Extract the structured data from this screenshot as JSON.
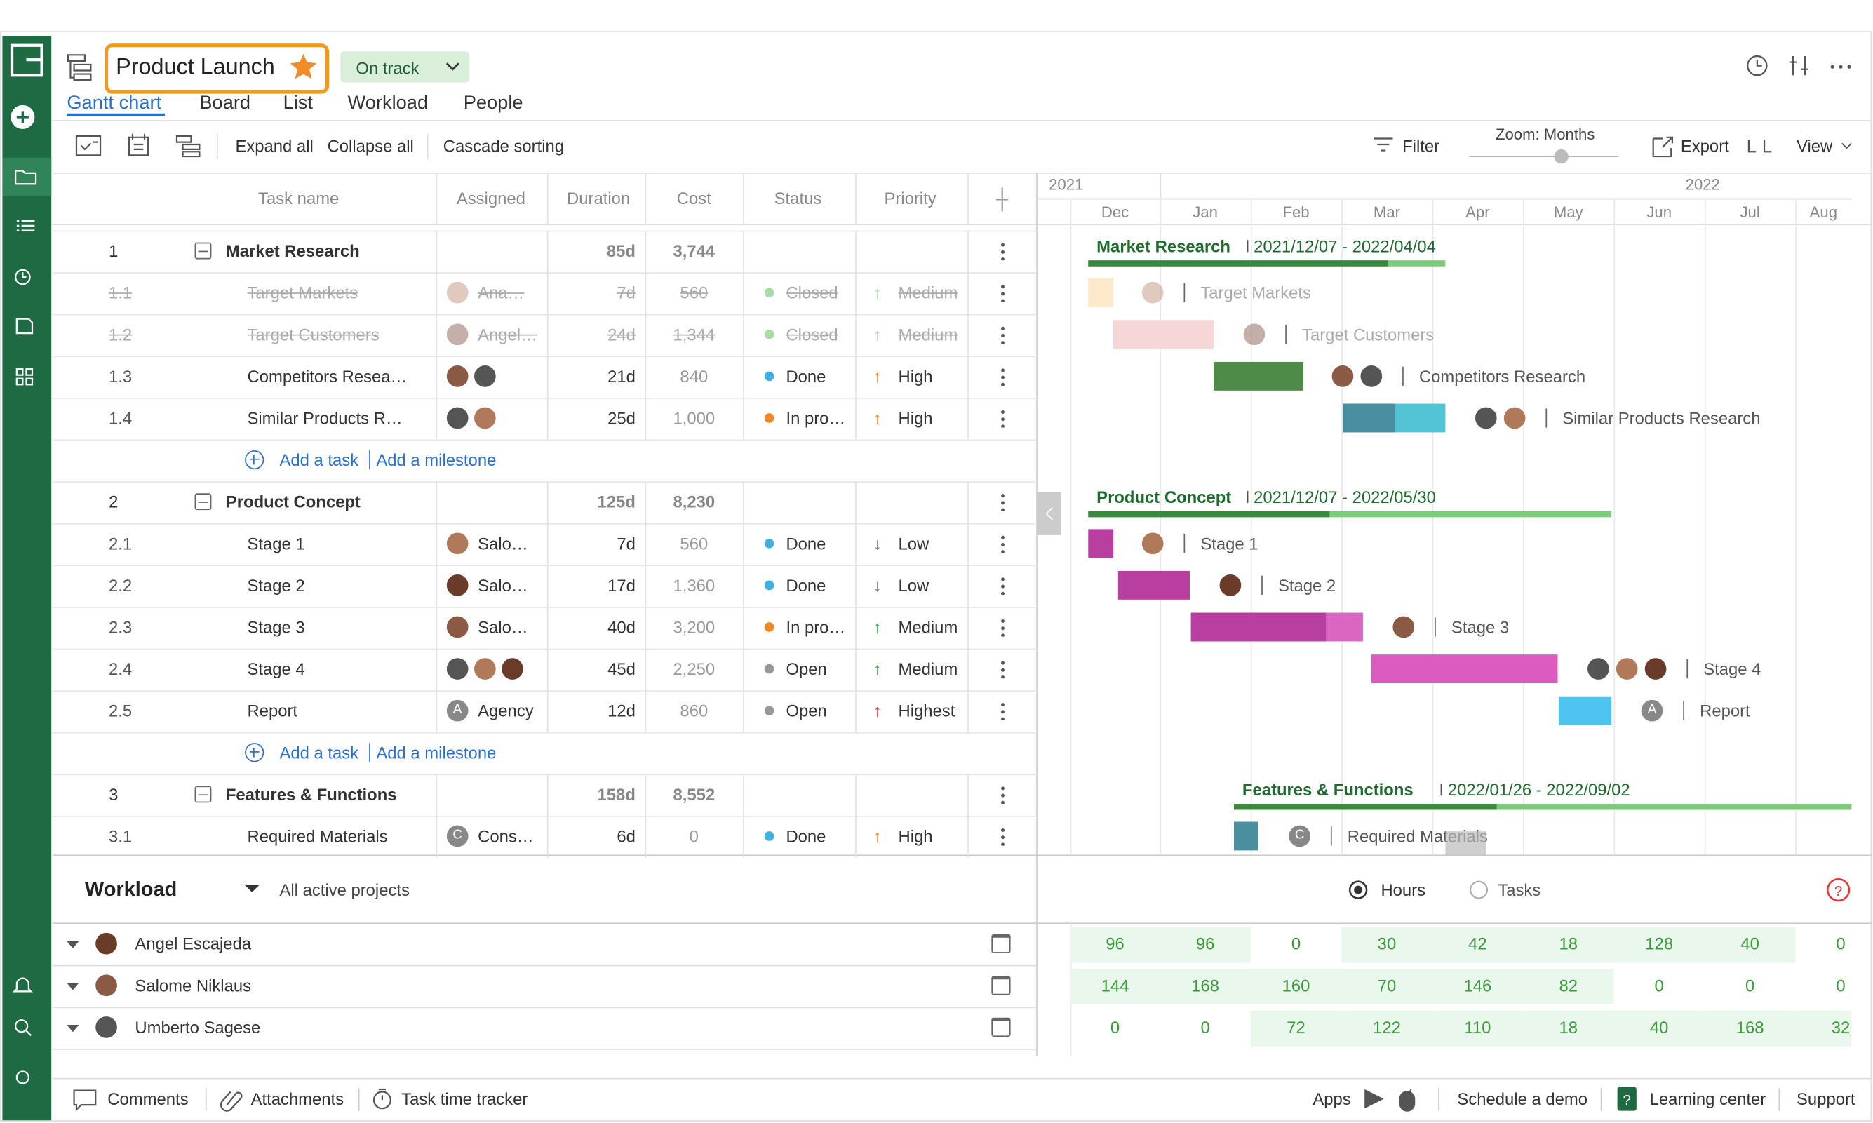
{
  "header": {
    "title": "Product Launch",
    "status": "On track",
    "tabs": [
      "Gantt chart",
      "Board",
      "List",
      "Workload",
      "People"
    ]
  },
  "toolbar": {
    "expand_all": "Expand all",
    "collapse_all": "Collapse all",
    "cascade_sorting": "Cascade sorting",
    "filter": "Filter",
    "zoom": "Zoom: Months",
    "export": "Export",
    "view": "View"
  },
  "table": {
    "columns": [
      "Task name",
      "Assigned",
      "Duration",
      "Cost",
      "Status",
      "Priority"
    ],
    "add_task": "Add a task",
    "add_milestone": "Add a milestone",
    "groups": [
      {
        "id": "1",
        "name": "Market Research",
        "duration": "85d",
        "cost": "3,744",
        "dates": "2021/12/07 - 2022/04/04",
        "tasks": [
          {
            "id": "1.1",
            "name": "Target Markets",
            "assigned": "Ana…",
            "duration": "7d",
            "cost": "560",
            "status": "Closed",
            "priority": "Medium"
          },
          {
            "id": "1.2",
            "name": "Target Customers",
            "assigned": "Angel…",
            "duration": "24d",
            "cost": "1,344",
            "status": "Closed",
            "priority": "Medium"
          },
          {
            "id": "1.3",
            "name": "Competitors Resea…",
            "gantt_label": "Competitors Research",
            "duration": "21d",
            "cost": "840",
            "status": "Done",
            "priority": "High"
          },
          {
            "id": "1.4",
            "name": "Similar Products R…",
            "gantt_label": "Similar Products Research",
            "duration": "25d",
            "cost": "1,000",
            "status": "In pro…",
            "priority": "High"
          }
        ]
      },
      {
        "id": "2",
        "name": "Product Concept",
        "duration": "125d",
        "cost": "8,230",
        "dates": "2021/12/07 - 2022/05/30",
        "tasks": [
          {
            "id": "2.1",
            "name": "Stage 1",
            "assigned": "Salo…",
            "duration": "7d",
            "cost": "560",
            "status": "Done",
            "priority": "Low"
          },
          {
            "id": "2.2",
            "name": "Stage 2",
            "assigned": "Salo…",
            "duration": "17d",
            "cost": "1,360",
            "status": "Done",
            "priority": "Low"
          },
          {
            "id": "2.3",
            "name": "Stage 3",
            "assigned": "Salo…",
            "duration": "40d",
            "cost": "3,200",
            "status": "In pro…",
            "priority": "Medium"
          },
          {
            "id": "2.4",
            "name": "Stage 4",
            "duration": "45d",
            "cost": "2,250",
            "status": "Open",
            "priority": "Medium"
          },
          {
            "id": "2.5",
            "name": "Report",
            "assigned": "Agency",
            "initial": "A",
            "duration": "12d",
            "cost": "860",
            "status": "Open",
            "priority": "Highest"
          }
        ]
      },
      {
        "id": "3",
        "name": "Features & Functions",
        "duration": "158d",
        "cost": "8,552",
        "dates": "2022/01/26 - 2022/09/02",
        "tasks": [
          {
            "id": "3.1",
            "name": "Required Materials",
            "assigned": "Cons…",
            "initial": "C",
            "duration": "6d",
            "cost": "0",
            "status": "Done",
            "priority": "High"
          }
        ]
      }
    ]
  },
  "timeline": {
    "years": [
      "2021",
      "2022"
    ],
    "months": [
      "Dec",
      "Jan",
      "Feb",
      "Mar",
      "Apr",
      "May",
      "Jun",
      "Jul",
      "Aug"
    ]
  },
  "workload": {
    "title": "Workload",
    "scope": "All active projects",
    "options": [
      "Hours",
      "Tasks"
    ],
    "people": [
      {
        "name": "Angel Escajeda",
        "hours": [
          96,
          96,
          0,
          30,
          42,
          18,
          128,
          40,
          0
        ]
      },
      {
        "name": "Salome Niklaus",
        "hours": [
          144,
          168,
          160,
          70,
          146,
          82,
          0,
          0,
          0
        ]
      },
      {
        "name": "Umberto Sagese",
        "hours": [
          0,
          0,
          72,
          122,
          110,
          18,
          40,
          168,
          32
        ]
      }
    ]
  },
  "footer": {
    "left": [
      "Comments",
      "Attachments",
      "Task time tracker"
    ],
    "apps": "Apps",
    "right": [
      "Schedule a demo",
      "Learning center",
      "Support"
    ]
  }
}
